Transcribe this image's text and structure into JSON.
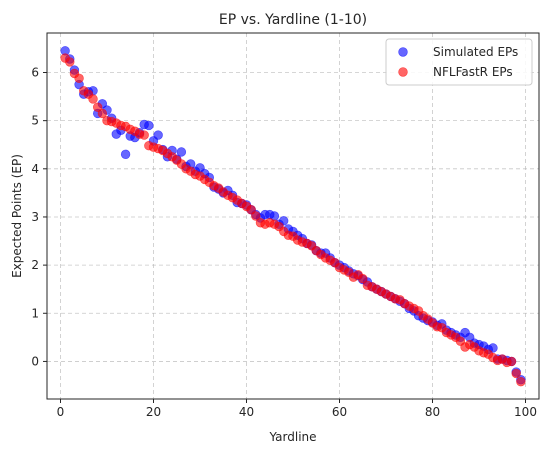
{
  "chart_data": {
    "type": "scatter",
    "title": "EP vs. Yardline (1-10)",
    "xlabel": "Yardline",
    "ylabel": "Expected Points (EP)",
    "xlim": [
      -2.9,
      102.9
    ],
    "ylim": [
      -0.78,
      6.82
    ],
    "xticks": [
      0,
      20,
      40,
      60,
      80,
      100
    ],
    "yticks": [
      0,
      1,
      2,
      3,
      4,
      5,
      6
    ],
    "grid": true,
    "legend_position": "top-right",
    "series": [
      {
        "name": "Simulated EPs",
        "color": "#0000ff",
        "alpha": 0.6,
        "x": [
          1,
          2,
          3,
          4,
          5,
          6,
          7,
          8,
          9,
          10,
          11,
          12,
          13,
          14,
          15,
          16,
          17,
          18,
          19,
          20,
          21,
          22,
          23,
          24,
          25,
          26,
          27,
          28,
          29,
          30,
          31,
          32,
          33,
          34,
          35,
          36,
          37,
          38,
          39,
          40,
          41,
          42,
          43,
          44,
          45,
          46,
          47,
          48,
          49,
          50,
          51,
          52,
          53,
          54,
          55,
          56,
          57,
          58,
          59,
          60,
          61,
          62,
          63,
          64,
          65,
          66,
          67,
          68,
          69,
          70,
          71,
          72,
          73,
          74,
          75,
          76,
          77,
          78,
          79,
          80,
          81,
          82,
          83,
          84,
          85,
          86,
          87,
          88,
          89,
          90,
          91,
          92,
          93,
          94,
          95,
          96,
          97,
          98,
          99
        ],
        "y": [
          6.45,
          6.28,
          6.05,
          5.75,
          5.55,
          5.6,
          5.62,
          5.15,
          5.35,
          5.22,
          5.05,
          4.72,
          4.8,
          4.3,
          4.68,
          4.65,
          4.75,
          4.92,
          4.9,
          4.58,
          4.7,
          4.4,
          4.25,
          4.38,
          4.2,
          4.35,
          4.05,
          4.1,
          3.95,
          4.02,
          3.9,
          3.82,
          3.62,
          3.58,
          3.5,
          3.55,
          3.45,
          3.3,
          3.28,
          3.25,
          3.15,
          3.05,
          2.98,
          3.05,
          3.05,
          3.02,
          2.85,
          2.92,
          2.75,
          2.7,
          2.62,
          2.55,
          2.45,
          2.42,
          2.3,
          2.25,
          2.25,
          2.15,
          2.05,
          2.0,
          1.95,
          1.88,
          1.82,
          1.78,
          1.7,
          1.65,
          1.55,
          1.5,
          1.45,
          1.4,
          1.35,
          1.3,
          1.25,
          1.2,
          1.1,
          1.05,
          0.95,
          0.9,
          0.85,
          0.82,
          0.75,
          0.78,
          0.65,
          0.6,
          0.55,
          0.5,
          0.6,
          0.5,
          0.38,
          0.35,
          0.32,
          0.25,
          0.28,
          0.05,
          0.05,
          0.02,
          0.0,
          -0.22,
          -0.38
        ]
      },
      {
        "name": "NFLFastR EPs",
        "color": "#ff0000",
        "alpha": 0.6,
        "x": [
          1,
          2,
          3,
          4,
          5,
          6,
          7,
          8,
          9,
          10,
          11,
          12,
          13,
          14,
          15,
          16,
          17,
          18,
          19,
          20,
          21,
          22,
          23,
          24,
          25,
          26,
          27,
          28,
          29,
          30,
          31,
          32,
          33,
          34,
          35,
          36,
          37,
          38,
          39,
          40,
          41,
          42,
          43,
          44,
          45,
          46,
          47,
          48,
          49,
          50,
          51,
          52,
          53,
          54,
          55,
          56,
          57,
          58,
          59,
          60,
          61,
          62,
          63,
          64,
          65,
          66,
          67,
          68,
          69,
          70,
          71,
          72,
          73,
          74,
          75,
          76,
          77,
          78,
          79,
          80,
          81,
          82,
          83,
          84,
          85,
          86,
          87,
          88,
          89,
          90,
          91,
          92,
          93,
          94,
          95,
          96,
          97,
          98,
          99
        ],
        "y": [
          6.3,
          6.22,
          5.98,
          5.88,
          5.62,
          5.55,
          5.45,
          5.28,
          5.15,
          5.0,
          4.98,
          4.95,
          4.9,
          4.88,
          4.82,
          4.78,
          4.72,
          4.7,
          4.48,
          4.45,
          4.42,
          4.38,
          4.32,
          4.25,
          4.18,
          4.1,
          4.0,
          3.95,
          3.88,
          3.85,
          3.78,
          3.72,
          3.65,
          3.6,
          3.52,
          3.45,
          3.4,
          3.35,
          3.28,
          3.22,
          3.15,
          3.02,
          2.88,
          2.85,
          2.88,
          2.85,
          2.8,
          2.7,
          2.62,
          2.6,
          2.52,
          2.48,
          2.45,
          2.4,
          2.3,
          2.22,
          2.15,
          2.1,
          2.05,
          1.95,
          1.9,
          1.85,
          1.75,
          1.8,
          1.72,
          1.58,
          1.55,
          1.5,
          1.45,
          1.4,
          1.35,
          1.3,
          1.28,
          1.2,
          1.15,
          1.1,
          1.05,
          0.95,
          0.88,
          0.8,
          0.72,
          0.7,
          0.6,
          0.55,
          0.5,
          0.42,
          0.3,
          0.35,
          0.3,
          0.22,
          0.18,
          0.15,
          0.08,
          0.02,
          0.05,
          -0.02,
          0.0,
          -0.25,
          -0.42
        ]
      }
    ]
  }
}
